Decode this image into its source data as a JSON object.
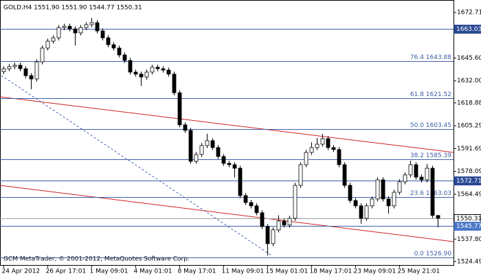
{
  "chart_data": {
    "type": "candlestick",
    "title": "GOLD,H4  1551.90 1551.90 1544.77 1550.31",
    "watermark": "GCM MetaTrader, © 2001-2012, MetaQuotes Software Corp.",
    "categories": [
      "24 Apr 2012",
      null,
      null,
      null,
      null,
      null,
      null,
      null,
      "26 Apr 17:01",
      null,
      null,
      null,
      null,
      null,
      null,
      null,
      "1 May 09:01",
      null,
      null,
      null,
      null,
      null,
      null,
      null,
      "4 May 01:01",
      null,
      null,
      null,
      null,
      null,
      null,
      null,
      "8 May 17:01",
      null,
      null,
      null,
      null,
      null,
      null,
      null,
      "11 May 09:01",
      null,
      null,
      null,
      null,
      null,
      null,
      null,
      "15 May 01:01",
      null,
      null,
      null,
      null,
      null,
      null,
      null,
      "18 May 17:01",
      null,
      null,
      null,
      null,
      null,
      null,
      null,
      "23 May 09:01",
      null,
      null,
      null,
      null,
      null,
      null,
      null,
      "25 May 21:01",
      null,
      null,
      null,
      null,
      null,
      null,
      null
    ],
    "open": [
      1637.5,
      1639.2,
      1640.5,
      1641.3,
      1639.2,
      1635.1,
      1633.1,
      1643.3,
      1651.5,
      1655.6,
      1657.6,
      1663.7,
      1664.5,
      1662.9,
      1660.5,
      1663.7,
      1665.4,
      1666.6,
      1661.7,
      1657.6,
      1653.5,
      1651.5,
      1647.4,
      1644.1,
      1637.2,
      1636.0,
      1634.3,
      1637.2,
      1640.1,
      1639.2,
      1638.4,
      1636.0,
      1624.9,
      1605.8,
      1602.5,
      1584.1,
      1588.2,
      1593.5,
      1596.4,
      1592.3,
      1587.0,
      1582.9,
      1582.1,
      1580.0,
      1563.7,
      1559.6,
      1557.6,
      1553.5,
      1545.3,
      1535.1,
      1543.3,
      1548.6,
      1546.2,
      1550.2,
      1569.8,
      1582.1,
      1589.4,
      1592.3,
      1594.3,
      1597.6,
      1592.3,
      1591.1,
      1582.1,
      1569.8,
      1560.8,
      1557.6,
      1550.2,
      1557.6,
      1561.7,
      1573.1,
      1561.7,
      1557.6,
      1565.7,
      1571.9,
      1576.0,
      1582.1,
      1574.7,
      1573.1,
      1580.0,
      1551.9
    ],
    "high": [
      1640.7,
      1642.0,
      1642.8,
      1642.8,
      1640.7,
      1636.6,
      1644.8,
      1653.0,
      1657.1,
      1659.1,
      1665.2,
      1666.0,
      1666.0,
      1664.4,
      1665.2,
      1666.9,
      1669.5,
      1668.1,
      1663.2,
      1659.1,
      1655.0,
      1653.0,
      1648.9,
      1645.6,
      1638.7,
      1637.5,
      1638.7,
      1641.6,
      1641.6,
      1640.7,
      1639.9,
      1637.5,
      1626.4,
      1607.3,
      1604.0,
      1589.7,
      1595.0,
      1600.5,
      1597.9,
      1593.8,
      1588.5,
      1584.4,
      1583.6,
      1581.5,
      1565.2,
      1561.1,
      1559.1,
      1555.0,
      1546.8,
      1544.8,
      1552.0,
      1550.1,
      1551.7,
      1571.3,
      1583.6,
      1590.9,
      1595.5,
      1598.0,
      1600.5,
      1599.1,
      1593.8,
      1592.6,
      1583.6,
      1571.3,
      1562.3,
      1559.1,
      1559.1,
      1563.2,
      1574.6,
      1574.6,
      1563.2,
      1567.2,
      1573.4,
      1577.5,
      1584.5,
      1583.6,
      1576.2,
      1582.5,
      1581.5,
      1551.9
    ],
    "low": [
      1636.0,
      1637.7,
      1639.0,
      1637.7,
      1633.6,
      1627.0,
      1631.6,
      1641.8,
      1650.0,
      1654.1,
      1656.1,
      1662.2,
      1661.4,
      1653.0,
      1659.0,
      1662.2,
      1663.9,
      1660.2,
      1656.1,
      1652.0,
      1650.0,
      1645.9,
      1642.6,
      1635.7,
      1634.5,
      1629.0,
      1632.8,
      1635.7,
      1637.7,
      1636.9,
      1634.5,
      1623.4,
      1604.3,
      1601.0,
      1582.6,
      1582.6,
      1586.7,
      1592.0,
      1590.8,
      1585.5,
      1581.4,
      1580.6,
      1574.5,
      1562.2,
      1558.1,
      1556.1,
      1552.0,
      1543.8,
      1528.0,
      1533.6,
      1541.8,
      1544.7,
      1544.7,
      1548.7,
      1568.3,
      1580.6,
      1587.9,
      1590.8,
      1592.8,
      1590.8,
      1589.6,
      1580.6,
      1568.3,
      1559.3,
      1556.1,
      1547.0,
      1548.7,
      1556.1,
      1560.2,
      1560.2,
      1553.0,
      1556.1,
      1564.2,
      1570.4,
      1574.5,
      1573.2,
      1571.6,
      1571.6,
      1550.4,
      1544.77
    ],
    "close": [
      1639.2,
      1640.5,
      1641.3,
      1639.2,
      1635.1,
      1633.1,
      1643.3,
      1651.5,
      1655.6,
      1657.6,
      1663.7,
      1664.5,
      1662.9,
      1660.5,
      1663.7,
      1665.4,
      1666.6,
      1661.7,
      1657.6,
      1653.5,
      1651.5,
      1647.4,
      1644.1,
      1637.2,
      1636.0,
      1634.3,
      1637.2,
      1640.1,
      1639.2,
      1638.4,
      1636.0,
      1624.9,
      1605.8,
      1602.5,
      1584.1,
      1588.2,
      1593.5,
      1596.4,
      1592.3,
      1587.0,
      1582.9,
      1582.1,
      1580.0,
      1563.7,
      1559.6,
      1557.6,
      1553.5,
      1545.3,
      1535.1,
      1543.3,
      1548.6,
      1546.2,
      1550.2,
      1569.8,
      1582.1,
      1589.4,
      1592.3,
      1594.3,
      1597.6,
      1592.3,
      1591.1,
      1582.1,
      1569.8,
      1560.8,
      1557.6,
      1550.2,
      1557.6,
      1561.7,
      1573.1,
      1561.7,
      1557.6,
      1565.7,
      1571.9,
      1576.0,
      1582.1,
      1574.7,
      1573.1,
      1580.0,
      1551.9,
      1550.31
    ],
    "up_color": "#ffffff",
    "down_color": "#000000",
    "ylim": [
      1522.4,
      1680.1
    ],
    "yticks": [
      1672.71,
      {
        "value": 1645.6,
        "label": "1645.60"
      },
      {
        "value": 1632,
        "label": "1632.00"
      },
      1618.88,
      1605.29,
      1591.69,
      1578.09,
      1564.49,
      {
        "value": 1537.8,
        "label": "1537.80"
      },
      1524.49
    ],
    "levels": [
      {
        "value": 1663.03,
        "color": "#3d5ea8",
        "box": "#2b4a94"
      },
      {
        "value": 1643.88,
        "label": "76.4 1643.88",
        "color": "#3d5ea8"
      },
      {
        "value": 1621.52,
        "label": "61.8 1621.52",
        "color": "#3d5ea8"
      },
      {
        "value": 1603.45,
        "label": "50.0 1603.45",
        "color": "#3d5ea8"
      },
      {
        "value": 1585.39,
        "label": "38.2 1585.39",
        "color": "#3d5ea8"
      },
      {
        "value": 1572.71,
        "color": "#3d5ea8",
        "box": "#2b4a94"
      },
      {
        "value": 1563.03,
        "label": "23.6 1563.03",
        "color": "#3d5ea8"
      },
      {
        "value": 1550.31,
        "color": "#a0a0a0",
        "box": "#ffffff"
      },
      {
        "value": 1545.77,
        "color": "#3d5ea8",
        "box": "#4a78c8"
      },
      {
        "value": 1526.9,
        "label": "0.0 1526.90",
        "color": "#3d5ea8"
      }
    ]
  }
}
